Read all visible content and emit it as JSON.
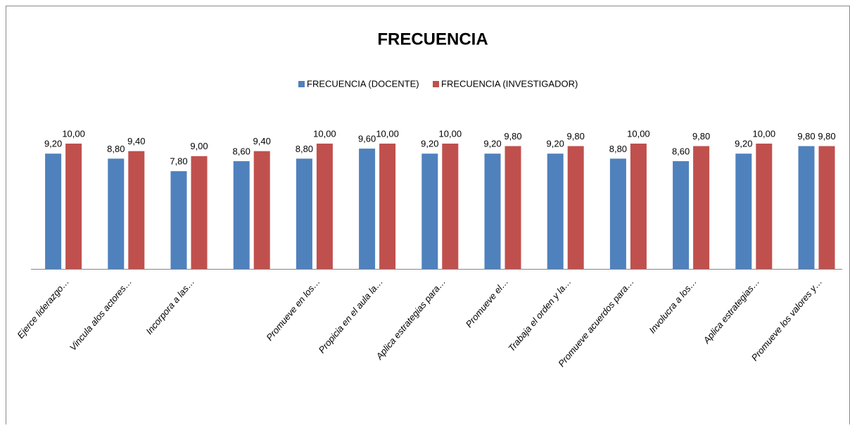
{
  "chart_data": {
    "type": "bar",
    "title": "FRECUENCIA",
    "categories": [
      "Ejerce liderazgo…",
      "Vincula alos actores…",
      "Incorpora a las…",
      null,
      "Promueve en los…",
      "Propicia en el aula la…",
      "Aplica estrategias para…",
      "Promueve el…",
      "Trabaja el orden y la…",
      "Promueve acuerdos para…",
      "Involucra a los…",
      "Aplica estrategias…",
      "Promueve los valores y…"
    ],
    "series": [
      {
        "name": "FRECUENCIA (DOCENTE)",
        "color": "#4f81bd",
        "values": [
          9.2,
          8.8,
          7.8,
          8.6,
          8.8,
          9.6,
          9.2,
          9.2,
          9.2,
          8.8,
          8.6,
          9.2,
          9.8
        ],
        "value_labels": [
          "9,20",
          "8,80",
          "7,80",
          "8,60",
          "8,80",
          "9,60",
          "9,20",
          "9,20",
          "9,20",
          "8,80",
          "8,60",
          "9,20",
          "9,80"
        ]
      },
      {
        "name": "FRECUENCIA (INVESTIGADOR)",
        "color": "#c0504d",
        "values": [
          10,
          9.4,
          9,
          9.4,
          10,
          10,
          10,
          9.8,
          9.8,
          10,
          9.8,
          10,
          9.8
        ],
        "value_labels": [
          "10,00",
          "9,40",
          "9,00",
          "9,40",
          "10,00",
          "10,00",
          "10,00",
          "9,80",
          "9,80",
          "10,00",
          "9,80",
          "10,00",
          "9,80"
        ]
      }
    ],
    "ylim": [
      0,
      10
    ],
    "legend": "top"
  }
}
